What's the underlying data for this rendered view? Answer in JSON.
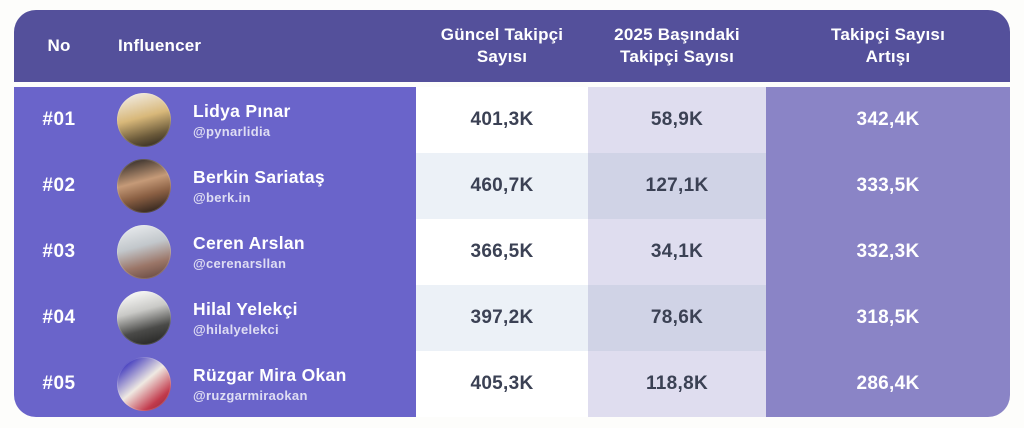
{
  "table": {
    "headers": {
      "no": "No",
      "influencer": "Influencer",
      "current": "Güncel Takipçi Sayısı",
      "start2025": "2025 Başındaki Takipçi Sayısı",
      "growth": "Takipçi Sayısı Artışı"
    },
    "rows": [
      {
        "rank": "#01",
        "name": "Lidya Pınar",
        "handle": "@pynarlidia",
        "current": "401,3K",
        "start2025": "58,9K",
        "growth": "342,4K"
      },
      {
        "rank": "#02",
        "name": "Berkin Sariataş",
        "handle": "@berk.in",
        "current": "460,7K",
        "start2025": "127,1K",
        "growth": "333,5K"
      },
      {
        "rank": "#03",
        "name": "Ceren Arslan",
        "handle": "@cerenarsllan",
        "current": "366,5K",
        "start2025": "34,1K",
        "growth": "332,3K"
      },
      {
        "rank": "#04",
        "name": "Hilal Yelekçi",
        "handle": "@hilalyelekci",
        "current": "397,2K",
        "start2025": "78,6K",
        "growth": "318,5K"
      },
      {
        "rank": "#05",
        "name": "Rüzgar Mira Okan",
        "handle": "@ruzgarmiraokan",
        "current": "405,3K",
        "start2025": "118,8K",
        "growth": "286,4K"
      }
    ]
  },
  "colors": {
    "header_bg": "#54509B",
    "left_section_bg": "#6A64CA",
    "growth_column_bg": "#8A84C6",
    "current_col_odd": "#FFFFFF",
    "current_col_even": "#ECF1F7",
    "start_col_odd": "#DFDDEF",
    "start_col_even": "#D0D3E6",
    "value_text": "#3B4154",
    "header_text": "#FFFFFF"
  }
}
